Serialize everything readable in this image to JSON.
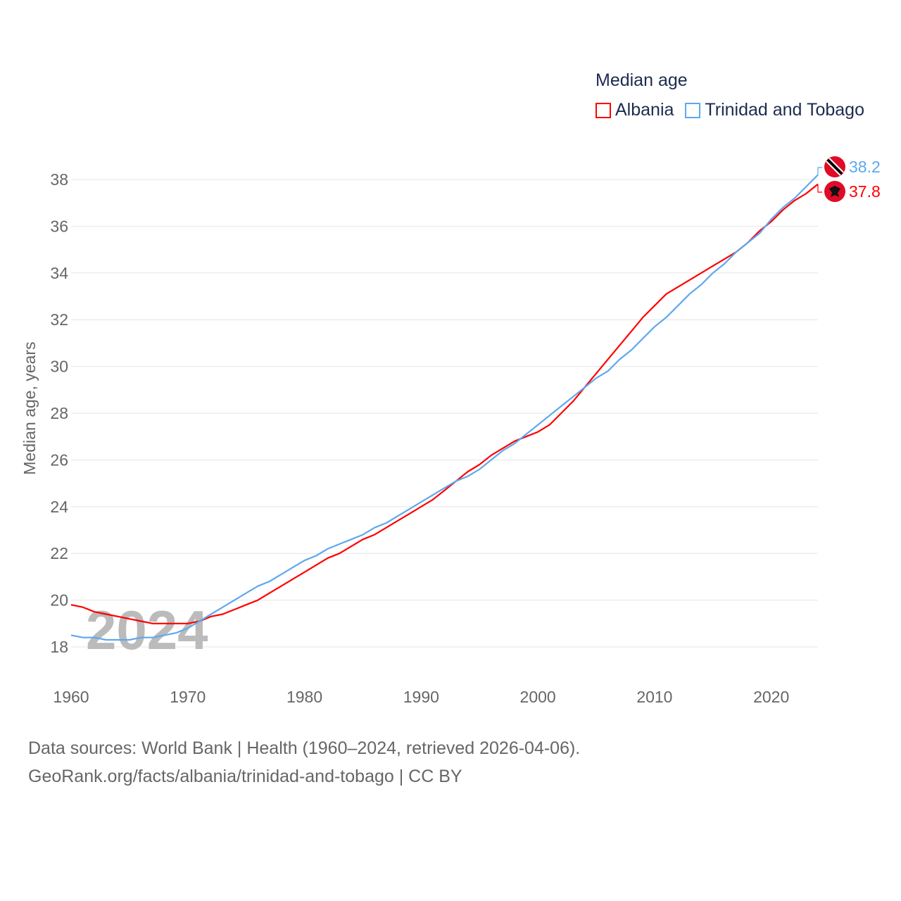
{
  "chart_data": {
    "type": "line",
    "title": "Median age",
    "xlabel": "",
    "ylabel": "Median age, years",
    "xlim": [
      1960,
      2024
    ],
    "ylim": [
      17,
      39
    ],
    "yticks": [
      18,
      20,
      22,
      24,
      26,
      28,
      30,
      32,
      34,
      36,
      38
    ],
    "xticks": [
      1960,
      1970,
      1980,
      1990,
      2000,
      2010,
      2020
    ],
    "grid": true,
    "legend_placement": "top-right",
    "watermark_year": "2024",
    "x": [
      1960,
      1961,
      1962,
      1963,
      1964,
      1965,
      1966,
      1967,
      1968,
      1969,
      1970,
      1971,
      1972,
      1973,
      1974,
      1975,
      1976,
      1977,
      1978,
      1979,
      1980,
      1981,
      1982,
      1983,
      1984,
      1985,
      1986,
      1987,
      1988,
      1989,
      1990,
      1991,
      1992,
      1993,
      1994,
      1995,
      1996,
      1997,
      1998,
      1999,
      2000,
      2001,
      2002,
      2003,
      2004,
      2005,
      2006,
      2007,
      2008,
      2009,
      2010,
      2011,
      2012,
      2013,
      2014,
      2015,
      2016,
      2017,
      2018,
      2019,
      2020,
      2021,
      2022,
      2023,
      2024
    ],
    "series": [
      {
        "name": "Albania",
        "color": "#ff0000",
        "end_label": "37.8",
        "flag": "albania-flag",
        "values": [
          19.8,
          19.7,
          19.5,
          19.4,
          19.3,
          19.2,
          19.1,
          19.0,
          19.0,
          19.0,
          19.0,
          19.1,
          19.3,
          19.4,
          19.6,
          19.8,
          20.0,
          20.3,
          20.6,
          20.9,
          21.2,
          21.5,
          21.8,
          22.0,
          22.3,
          22.6,
          22.8,
          23.1,
          23.4,
          23.7,
          24.0,
          24.3,
          24.7,
          25.1,
          25.5,
          25.8,
          26.2,
          26.5,
          26.8,
          27.0,
          27.2,
          27.5,
          28.0,
          28.5,
          29.1,
          29.7,
          30.3,
          30.9,
          31.5,
          32.1,
          32.6,
          33.1,
          33.4,
          33.7,
          34.0,
          34.3,
          34.6,
          34.9,
          35.3,
          35.8,
          36.2,
          36.7,
          37.1,
          37.4,
          37.8
        ]
      },
      {
        "name": "Trinidad and Tobago",
        "color": "#5ea8ee",
        "end_label": "38.2",
        "flag": "trinidad-and-tobago-flag",
        "values": [
          18.5,
          18.4,
          18.4,
          18.3,
          18.3,
          18.3,
          18.4,
          18.4,
          18.5,
          18.6,
          18.8,
          19.1,
          19.4,
          19.7,
          20.0,
          20.3,
          20.6,
          20.8,
          21.1,
          21.4,
          21.7,
          21.9,
          22.2,
          22.4,
          22.6,
          22.8,
          23.1,
          23.3,
          23.6,
          23.9,
          24.2,
          24.5,
          24.8,
          25.1,
          25.3,
          25.6,
          26.0,
          26.4,
          26.7,
          27.1,
          27.5,
          27.9,
          28.3,
          28.7,
          29.1,
          29.5,
          29.8,
          30.3,
          30.7,
          31.2,
          31.7,
          32.1,
          32.6,
          33.1,
          33.5,
          34.0,
          34.4,
          34.9,
          35.3,
          35.7,
          36.3,
          36.8,
          37.2,
          37.7,
          38.2
        ]
      }
    ]
  },
  "legend": {
    "title": "Median age",
    "items": [
      "Albania",
      "Trinidad and Tobago"
    ]
  },
  "footer": {
    "line1": "Data sources: World Bank | Health (1960–2024, retrieved 2026-04-06).",
    "line2": "GeoRank.org/facts/albania/trinidad-and-tobago | CC BY"
  }
}
